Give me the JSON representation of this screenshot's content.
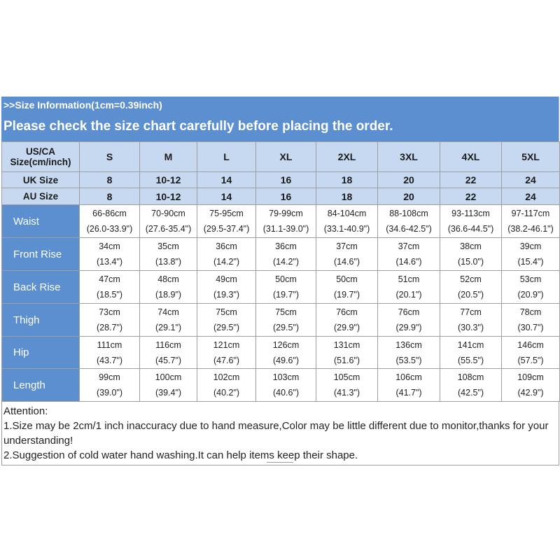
{
  "title": ">>Size Information(1cm=0.39inch)",
  "subtitle": "Please check the size chart carefully before placing the order.",
  "header_rows": [
    {
      "label": "US/CA Size(cm/inch)",
      "values": [
        "S",
        "M",
        "L",
        "XL",
        "2XL",
        "3XL",
        "4XL",
        "5XL"
      ]
    },
    {
      "label": "UK Size",
      "values": [
        "8",
        "10-12",
        "14",
        "16",
        "18",
        "20",
        "22",
        "24"
      ]
    },
    {
      "label": "AU Size",
      "values": [
        "8",
        "10-12",
        "14",
        "16",
        "18",
        "20",
        "22",
        "24"
      ]
    }
  ],
  "measurements": [
    {
      "label": "Waist",
      "cm": [
        "66-86cm",
        "70-90cm",
        "75-95cm",
        "79-99cm",
        "84-104cm",
        "88-108cm",
        "93-113cm",
        "97-117cm"
      ],
      "inch": [
        "(26.0-33.9\")",
        "(27.6-35.4\")",
        "(29.5-37.4\")",
        "(31.1-39.0\")",
        "(33.1-40.9\")",
        "(34.6-42.5\")",
        "(36.6-44.5\")",
        "(38.2-46.1\")"
      ]
    },
    {
      "label": "Front Rise",
      "cm": [
        "34cm",
        "35cm",
        "36cm",
        "36cm",
        "37cm",
        "37cm",
        "38cm",
        "39cm"
      ],
      "inch": [
        "(13.4\")",
        "(13.8\")",
        "(14.2\")",
        "(14.2\")",
        "(14.6\")",
        "(14.6\")",
        "(15.0\")",
        "(15.4\")"
      ]
    },
    {
      "label": "Back Rise",
      "cm": [
        "47cm",
        "48cm",
        "49cm",
        "50cm",
        "50cm",
        "51cm",
        "52cm",
        "53cm"
      ],
      "inch": [
        "(18.5\")",
        "(18.9\")",
        "(19.3\")",
        "(19.7\")",
        "(19.7\")",
        "(20.1\")",
        "(20.5\")",
        "(20.9\")"
      ]
    },
    {
      "label": "Thigh",
      "cm": [
        "73cm",
        "74cm",
        "75cm",
        "75cm",
        "76cm",
        "76cm",
        "77cm",
        "78cm"
      ],
      "inch": [
        "(28.7\")",
        "(29.1\")",
        "(29.5\")",
        "(29.5\")",
        "(29.9\")",
        "(29.9\")",
        "(30.3\")",
        "(30.7\")"
      ]
    },
    {
      "label": "Hip",
      "cm": [
        "111cm",
        "116cm",
        "121cm",
        "126cm",
        "131cm",
        "136cm",
        "141cm",
        "146cm"
      ],
      "inch": [
        "(43.7\")",
        "(45.7\")",
        "(47.6\")",
        "(49.6\")",
        "(51.6\")",
        "(53.5\")",
        "(55.5\")",
        "(57.5\")"
      ]
    },
    {
      "label": "Length",
      "cm": [
        "99cm",
        "100cm",
        "102cm",
        "103cm",
        "105cm",
        "106cm",
        "108cm",
        "109cm"
      ],
      "inch": [
        "(39.0\")",
        "(39.4\")",
        "(40.2\")",
        "(40.6\")",
        "(41.3\")",
        "(41.7\")",
        "(42.5\")",
        "(42.9\")"
      ]
    }
  ],
  "notes": {
    "heading": "Attention:",
    "line1": "1.Size may be 2cm/1 inch inaccuracy due to hand measure,Color may be little different due to monitor,thanks for your understanding!",
    "line2": "2.Suggestion of cold water hand washing.It can help items keep their shape."
  },
  "colors": {
    "banner": "#5b8fd0",
    "header_cell": "#c6d9f1",
    "border": "#9e9e9e"
  }
}
